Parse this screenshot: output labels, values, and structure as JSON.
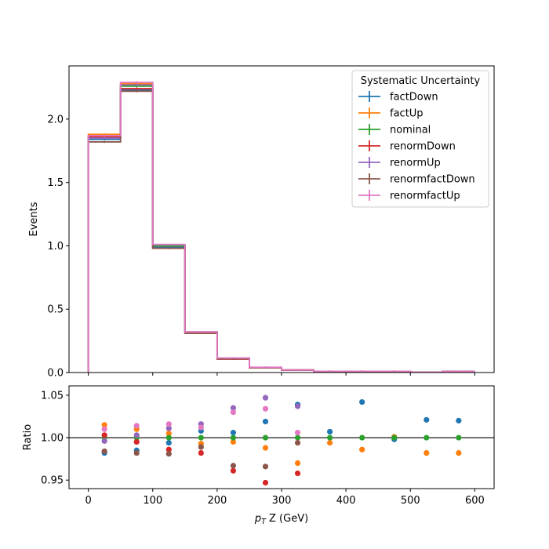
{
  "chart_data": [
    {
      "type": "step",
      "panel": "main",
      "ylabel": "Events",
      "xlim": [
        -30,
        630
      ],
      "ylim": [
        0,
        2.42
      ],
      "yticks": [
        0.0,
        0.5,
        1.0,
        1.5,
        2.0
      ],
      "ytick_labels": [
        "0.0",
        "0.5",
        "1.0",
        "1.5",
        "2.0"
      ],
      "bin_edges": [
        0,
        50,
        100,
        150,
        200,
        250,
        300,
        350,
        400,
        450,
        500,
        550,
        600
      ],
      "legend": {
        "title": "Systematic Uncertainty",
        "placement": "top-right"
      },
      "series": [
        {
          "name": "factDown",
          "color": "#1f77b4",
          "values": [
            1.84,
            2.23,
            0.99,
            0.32,
            0.115,
            0.04,
            0.02,
            0.01,
            0.01,
            0.01,
            0.003,
            0.008
          ]
        },
        {
          "name": "factUp",
          "color": "#ff7f0e",
          "values": [
            1.88,
            2.28,
            1.0,
            0.32,
            0.11,
            0.04,
            0.02,
            0.01,
            0.01,
            0.01,
            0.003,
            0.008
          ]
        },
        {
          "name": "nominal",
          "color": "#2ca02c",
          "values": [
            1.86,
            2.26,
            1.0,
            0.32,
            0.11,
            0.04,
            0.02,
            0.01,
            0.01,
            0.01,
            0.003,
            0.008
          ]
        },
        {
          "name": "renormDown",
          "color": "#d62728",
          "values": [
            1.86,
            2.24,
            0.98,
            0.31,
            0.105,
            0.037,
            0.019,
            0.01,
            0.01,
            0.01,
            0.003,
            0.008
          ]
        },
        {
          "name": "renormUp",
          "color": "#9467bd",
          "values": [
            1.85,
            2.27,
            1.01,
            0.32,
            0.115,
            0.042,
            0.02,
            0.01,
            0.01,
            0.01,
            0.003,
            0.008
          ]
        },
        {
          "name": "renormfactDown",
          "color": "#8c564b",
          "values": [
            1.82,
            2.22,
            0.98,
            0.31,
            0.107,
            0.038,
            0.02,
            0.01,
            0.01,
            0.01,
            0.003,
            0.008
          ]
        },
        {
          "name": "renormfactUp",
          "color": "#e377c2",
          "values": [
            1.87,
            2.29,
            1.01,
            0.32,
            0.115,
            0.041,
            0.02,
            0.01,
            0.01,
            0.01,
            0.003,
            0.008
          ]
        }
      ]
    },
    {
      "type": "scatter",
      "panel": "ratio",
      "xlabel": "p_T Z (GeV)",
      "ylabel": "Ratio",
      "xlim": [
        -30,
        630
      ],
      "ylim": [
        0.94,
        1.061
      ],
      "xticks": [
        0,
        100,
        200,
        300,
        400,
        500,
        600
      ],
      "xtick_labels": [
        "0",
        "100",
        "200",
        "300",
        "400",
        "500",
        "600"
      ],
      "yticks": [
        0.95,
        1.0,
        1.05
      ],
      "ytick_labels": [
        "0.95",
        "1.00",
        "1.05"
      ],
      "reference_line": 1.0,
      "x": [
        25,
        75,
        125,
        175,
        225,
        275,
        325,
        375,
        425,
        475,
        525,
        575
      ],
      "series": [
        {
          "name": "factDown",
          "color": "#1f77b4",
          "values": [
            0.982,
            0.985,
            0.994,
            1.008,
            1.006,
            1.019,
            1.039,
            1.007,
            1.042,
            0.998,
            1.021,
            1.02
          ]
        },
        {
          "name": "factUp",
          "color": "#ff7f0e",
          "values": [
            1.015,
            1.01,
            1.005,
            0.993,
            0.995,
            0.988,
            0.97,
            0.994,
            0.986,
            1.001,
            0.982,
            0.982
          ]
        },
        {
          "name": "nominal",
          "color": "#2ca02c",
          "values": [
            1.0,
            1.0,
            1.0,
            1.0,
            1.0,
            1.0,
            1.0,
            1.0,
            1.0,
            1.0,
            1.0,
            1.0
          ]
        },
        {
          "name": "renormDown",
          "color": "#d62728",
          "values": [
            1.003,
            0.995,
            0.986,
            0.982,
            0.961,
            0.947,
            0.958,
            null,
            null,
            null,
            null,
            null
          ]
        },
        {
          "name": "renormUp",
          "color": "#9467bd",
          "values": [
            0.996,
            1.003,
            1.011,
            1.016,
            1.035,
            1.047,
            1.037,
            null,
            null,
            null,
            null,
            null
          ]
        },
        {
          "name": "renormfactDown",
          "color": "#8c564b",
          "values": [
            0.984,
            0.982,
            0.981,
            0.989,
            0.967,
            0.966,
            0.994,
            null,
            null,
            null,
            null,
            null
          ]
        },
        {
          "name": "renormfactUp",
          "color": "#e377c2",
          "values": [
            1.01,
            1.014,
            1.016,
            1.012,
            1.03,
            1.034,
            1.006,
            null,
            null,
            null,
            null,
            null
          ]
        }
      ]
    }
  ]
}
